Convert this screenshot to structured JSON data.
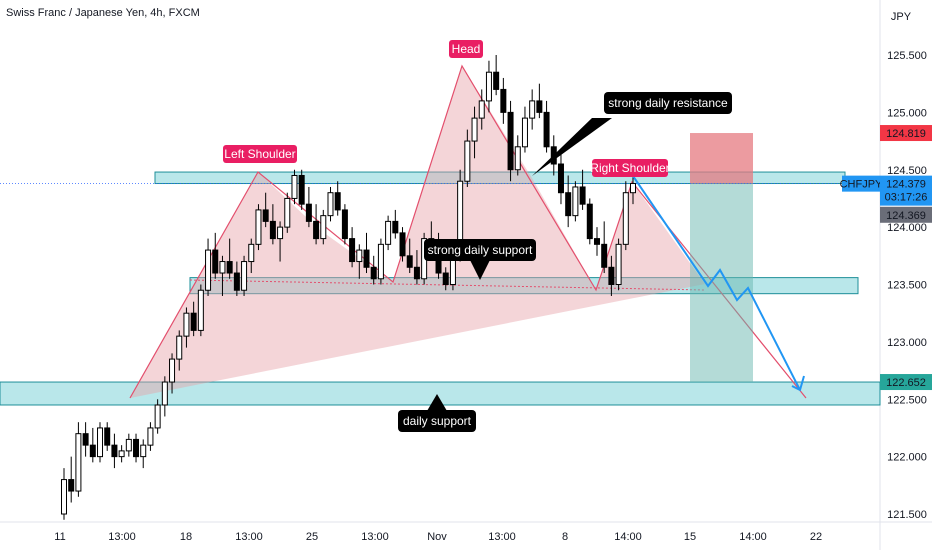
{
  "header": {
    "title": "Swiss Franc / Japanese Yen, 4h, FXCM",
    "values": ""
  },
  "chart_data": {
    "type": "candlestick",
    "currency": "JPY",
    "symbol": "CHFJPY",
    "ylim": [
      121.45,
      125.95
    ],
    "y_ticks": [
      "125.500",
      "125.000",
      "124.500",
      "124.000",
      "123.500",
      "123.000",
      "122.500",
      "122.000",
      "121.500"
    ],
    "x_ticks": [
      "11",
      "13:00",
      "18",
      "13:00",
      "25",
      "13:00",
      "Nov",
      "13:00",
      "8",
      "14:00",
      "15",
      "14:00",
      "22"
    ],
    "price_labels": {
      "stop": "124.819",
      "current": "124.379",
      "countdown": "03:17:26",
      "bid": "124.369",
      "target": "122.652"
    },
    "zones": [
      {
        "name": "strong daily resistance",
        "low": 124.38,
        "high": 124.48
      },
      {
        "name": "strong daily support",
        "low": 123.42,
        "high": 123.56
      },
      {
        "name": "daily support",
        "low": 122.45,
        "high": 122.65
      }
    ],
    "pattern": {
      "points": [
        {
          "label": "Left Shoulder",
          "price": 124.52
        },
        {
          "label": "Head",
          "price": 125.43
        },
        {
          "label": "Right Shoulder",
          "price": 124.45
        }
      ],
      "neckline": [
        123.54,
        123.42
      ]
    },
    "annotations": [
      "Left Shoulder",
      "Head",
      "Right Shoulder",
      "strong daily resistance",
      "strong daily support",
      "daily support"
    ],
    "position": {
      "entry": 124.38,
      "stop": 124.82,
      "target": 122.65
    },
    "candles": [
      [
        121.5,
        121.9,
        121.45,
        121.8
      ],
      [
        121.8,
        122.0,
        121.6,
        121.7
      ],
      [
        121.7,
        122.3,
        121.65,
        122.2
      ],
      [
        122.2,
        122.3,
        122.0,
        122.1
      ],
      [
        122.1,
        122.25,
        121.95,
        122.0
      ],
      [
        122.0,
        122.3,
        121.95,
        122.25
      ],
      [
        122.25,
        122.3,
        122.05,
        122.1
      ],
      [
        122.1,
        122.2,
        121.9,
        122.0
      ],
      [
        122.0,
        122.1,
        121.95,
        122.05
      ],
      [
        122.05,
        122.2,
        122.0,
        122.15
      ],
      [
        122.15,
        122.2,
        121.95,
        122.0
      ],
      [
        122.0,
        122.15,
        121.9,
        122.1
      ],
      [
        122.1,
        122.3,
        122.05,
        122.25
      ],
      [
        122.25,
        122.5,
        122.2,
        122.45
      ],
      [
        122.45,
        122.7,
        122.35,
        122.65
      ],
      [
        122.65,
        122.9,
        122.55,
        122.85
      ],
      [
        122.85,
        123.1,
        122.75,
        123.05
      ],
      [
        123.05,
        123.3,
        122.95,
        123.25
      ],
      [
        123.25,
        123.35,
        123.05,
        123.1
      ],
      [
        123.1,
        123.5,
        123.05,
        123.45
      ],
      [
        123.45,
        123.9,
        123.4,
        123.8
      ],
      [
        123.8,
        123.95,
        123.55,
        123.6
      ],
      [
        123.6,
        123.75,
        123.4,
        123.7
      ],
      [
        123.7,
        123.9,
        123.55,
        123.6
      ],
      [
        123.6,
        123.7,
        123.4,
        123.45
      ],
      [
        123.45,
        123.75,
        123.4,
        123.7
      ],
      [
        123.7,
        123.9,
        123.6,
        123.85
      ],
      [
        123.85,
        124.2,
        123.8,
        124.15
      ],
      [
        124.15,
        124.3,
        124.0,
        124.05
      ],
      [
        124.05,
        124.2,
        123.85,
        123.9
      ],
      [
        123.9,
        124.05,
        123.7,
        124.0
      ],
      [
        124.0,
        124.3,
        123.95,
        124.25
      ],
      [
        124.25,
        124.5,
        124.2,
        124.45
      ],
      [
        124.45,
        124.5,
        124.15,
        124.2
      ],
      [
        124.2,
        124.35,
        124.0,
        124.05
      ],
      [
        124.05,
        124.2,
        123.85,
        123.9
      ],
      [
        123.9,
        124.15,
        123.85,
        124.1
      ],
      [
        124.1,
        124.35,
        124.05,
        124.3
      ],
      [
        124.3,
        124.4,
        124.1,
        124.15
      ],
      [
        124.15,
        124.2,
        123.85,
        123.9
      ],
      [
        123.9,
        124.0,
        123.65,
        123.7
      ],
      [
        123.7,
        123.85,
        123.55,
        123.8
      ],
      [
        123.8,
        123.95,
        123.6,
        123.65
      ],
      [
        123.65,
        123.75,
        123.5,
        123.55
      ],
      [
        123.55,
        123.9,
        123.5,
        123.85
      ],
      [
        123.85,
        124.1,
        123.8,
        124.05
      ],
      [
        124.05,
        124.15,
        123.9,
        123.95
      ],
      [
        123.95,
        124.0,
        123.7,
        123.75
      ],
      [
        123.75,
        123.9,
        123.6,
        123.65
      ],
      [
        123.65,
        123.8,
        123.5,
        123.55
      ],
      [
        123.55,
        123.95,
        123.5,
        123.9
      ],
      [
        123.9,
        124.05,
        123.8,
        123.85
      ],
      [
        123.85,
        123.95,
        123.55,
        123.6
      ],
      [
        123.6,
        123.65,
        123.45,
        123.5
      ],
      [
        123.5,
        123.8,
        123.45,
        123.75
      ],
      [
        123.75,
        124.5,
        123.7,
        124.4
      ],
      [
        124.4,
        124.85,
        124.35,
        124.75
      ],
      [
        124.75,
        125.05,
        124.6,
        124.95
      ],
      [
        124.95,
        125.2,
        124.85,
        125.1
      ],
      [
        125.1,
        125.45,
        125.0,
        125.35
      ],
      [
        125.35,
        125.5,
        125.15,
        125.2
      ],
      [
        125.2,
        125.3,
        124.9,
        125.0
      ],
      [
        125.0,
        125.1,
        124.4,
        124.5
      ],
      [
        124.5,
        124.8,
        124.45,
        124.7
      ],
      [
        124.7,
        125.05,
        124.65,
        124.95
      ],
      [
        124.95,
        125.2,
        124.85,
        125.1
      ],
      [
        125.1,
        125.25,
        124.95,
        125.0
      ],
      [
        125.0,
        125.1,
        124.65,
        124.7
      ],
      [
        124.7,
        124.8,
        124.45,
        124.55
      ],
      [
        124.55,
        124.65,
        124.2,
        124.3
      ],
      [
        124.3,
        124.45,
        124.0,
        124.1
      ],
      [
        124.1,
        124.4,
        124.05,
        124.35
      ],
      [
        124.35,
        124.5,
        124.15,
        124.2
      ],
      [
        124.2,
        124.25,
        123.85,
        123.9
      ],
      [
        123.9,
        124.0,
        123.75,
        123.85
      ],
      [
        123.85,
        124.05,
        123.6,
        123.65
      ],
      [
        123.65,
        123.75,
        123.4,
        123.5
      ],
      [
        123.5,
        123.9,
        123.45,
        123.85
      ],
      [
        123.85,
        124.4,
        123.8,
        124.3
      ],
      [
        124.3,
        124.45,
        124.2,
        124.38
      ]
    ]
  }
}
